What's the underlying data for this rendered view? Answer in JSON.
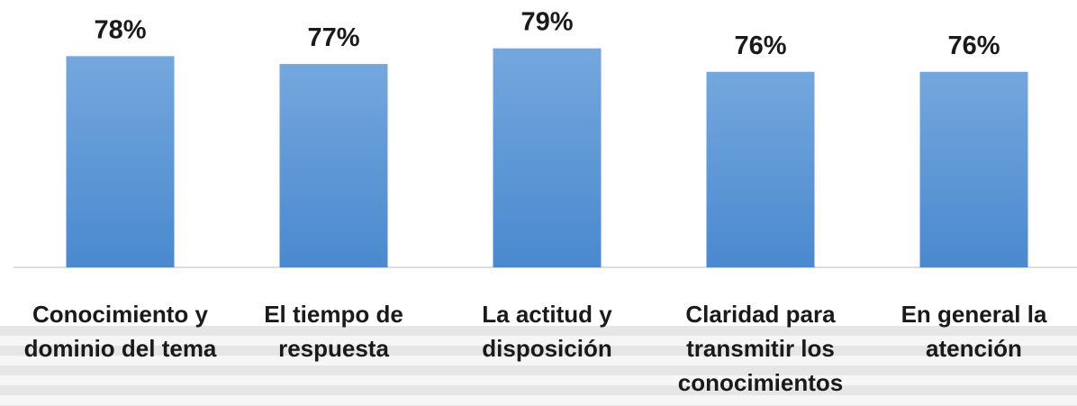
{
  "chart_data": {
    "type": "bar",
    "categories": [
      "Conocimiento y dominio del tema",
      "El tiempo de respuesta",
      "La actitud y disposición",
      "Claridad para transmitir los conocimientos",
      "En general la atención"
    ],
    "values": [
      78,
      77,
      79,
      76,
      76
    ],
    "value_labels": [
      "78%",
      "77%",
      "79%",
      "76%",
      "76%"
    ],
    "color": "#5b9bd5",
    "ylim": [
      51,
      80
    ]
  }
}
